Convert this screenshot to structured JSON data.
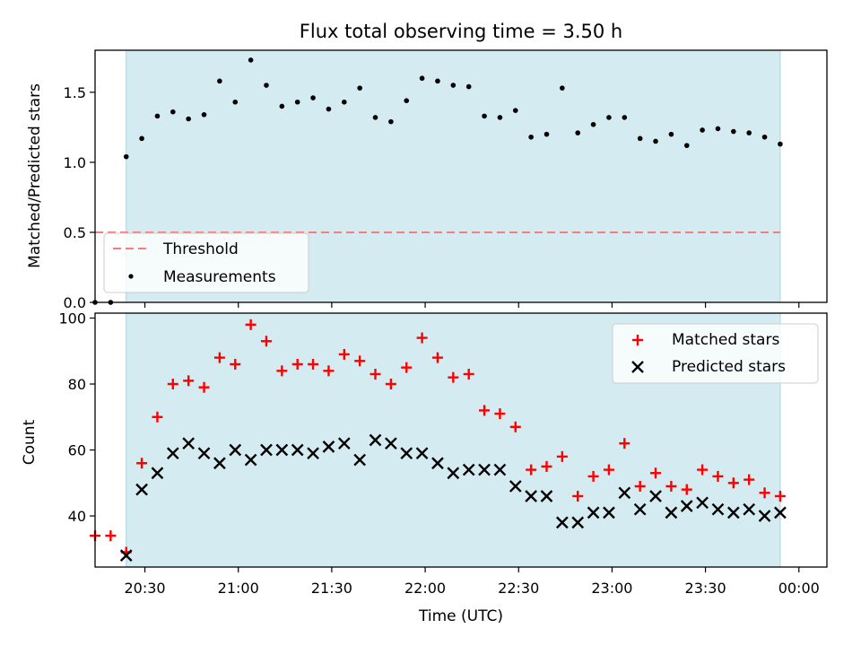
{
  "chart_data": [
    {
      "type": "scatter",
      "title": "Flux total observing time = 3.50 h",
      "ylabel": "Matched/Predicted stars",
      "xlabel": "",
      "xlim": [
        "20:14",
        "00:09"
      ],
      "ylim": [
        0,
        1.8
      ],
      "yticks": [
        {
          "value": 0.0,
          "label": "0.0"
        },
        {
          "value": 0.5,
          "label": "0.5"
        },
        {
          "value": 1.0,
          "label": "1.0"
        },
        {
          "value": 1.5,
          "label": "1.5"
        }
      ],
      "shaded_span": {
        "start": "20:24",
        "end": "23:54",
        "color": "#d3ebf1"
      },
      "threshold": {
        "name": "Threshold",
        "value": 0.5,
        "start": "20:14",
        "end": "23:54",
        "color": "#f08080"
      },
      "legend": {
        "placement": "lower-left",
        "entries": [
          "Threshold",
          "Measurements"
        ]
      },
      "series": [
        {
          "name": "Measurements",
          "color": "#000000",
          "marker": "dot",
          "x": [
            "20:14",
            "20:19",
            "20:24",
            "20:29",
            "20:34",
            "20:39",
            "20:44",
            "20:49",
            "20:54",
            "20:59",
            "21:04",
            "21:09",
            "21:14",
            "21:19",
            "21:24",
            "21:29",
            "21:34",
            "21:39",
            "21:44",
            "21:49",
            "21:54",
            "21:59",
            "22:04",
            "22:09",
            "22:14",
            "22:19",
            "22:24",
            "22:29",
            "22:34",
            "22:39",
            "22:44",
            "22:49",
            "22:54",
            "22:59",
            "23:04",
            "23:09",
            "23:14",
            "23:19",
            "23:24",
            "23:29",
            "23:34",
            "23:39",
            "23:44",
            "23:49",
            "23:54"
          ],
          "y": [
            0.0,
            0.0,
            1.04,
            1.17,
            1.33,
            1.36,
            1.31,
            1.34,
            1.58,
            1.43,
            1.73,
            1.55,
            1.4,
            1.43,
            1.46,
            1.38,
            1.43,
            1.53,
            1.32,
            1.29,
            1.44,
            1.6,
            1.58,
            1.55,
            1.54,
            1.33,
            1.32,
            1.37,
            1.18,
            1.2,
            1.53,
            1.21,
            1.27,
            1.32,
            1.32,
            1.17,
            1.15,
            1.2,
            1.12,
            1.23,
            1.24,
            1.22,
            1.21,
            1.18,
            1.13
          ]
        }
      ]
    },
    {
      "type": "scatter",
      "title": "",
      "ylabel": "Count",
      "xlabel": "Time (UTC)",
      "xlim": [
        "20:14",
        "00:09"
      ],
      "ylim": [
        24.5,
        101.5
      ],
      "yticks": [
        {
          "value": 40,
          "label": "40"
        },
        {
          "value": 60,
          "label": "60"
        },
        {
          "value": 80,
          "label": "80"
        },
        {
          "value": 100,
          "label": "100"
        }
      ],
      "xticks": [
        {
          "value": "20:30",
          "label": "20:30"
        },
        {
          "value": "21:00",
          "label": "21:00"
        },
        {
          "value": "21:30",
          "label": "21:30"
        },
        {
          "value": "22:00",
          "label": "22:00"
        },
        {
          "value": "22:30",
          "label": "22:30"
        },
        {
          "value": "23:00",
          "label": "23:00"
        },
        {
          "value": "23:30",
          "label": "23:30"
        },
        {
          "value": "00:00",
          "label": "00:00"
        }
      ],
      "shaded_span": {
        "start": "20:24",
        "end": "23:54",
        "color": "#d3ebf1"
      },
      "legend": {
        "placement": "top-right",
        "entries": [
          "Matched stars",
          "Predicted stars"
        ]
      },
      "series": [
        {
          "name": "Matched stars",
          "color": "#ff0000",
          "marker": "plus",
          "x": [
            "20:14",
            "20:19",
            "20:24",
            "20:29",
            "20:34",
            "20:39",
            "20:44",
            "20:49",
            "20:54",
            "20:59",
            "21:04",
            "21:09",
            "21:14",
            "21:19",
            "21:24",
            "21:29",
            "21:34",
            "21:39",
            "21:44",
            "21:49",
            "21:54",
            "21:59",
            "22:04",
            "22:09",
            "22:14",
            "22:19",
            "22:24",
            "22:29",
            "22:34",
            "22:39",
            "22:44",
            "22:49",
            "22:54",
            "22:59",
            "23:04",
            "23:09",
            "23:14",
            "23:19",
            "23:24",
            "23:29",
            "23:34",
            "23:39",
            "23:44",
            "23:49",
            "23:54"
          ],
          "y": [
            34,
            34,
            29,
            56,
            70,
            80,
            81,
            79,
            88,
            86,
            98,
            93,
            84,
            86,
            86,
            84,
            89,
            87,
            83,
            80,
            85,
            94,
            88,
            82,
            83,
            72,
            71,
            67,
            54,
            55,
            58,
            46,
            52,
            54,
            62,
            49,
            53,
            49,
            48,
            54,
            52,
            50,
            51,
            47,
            46
          ]
        },
        {
          "name": "Predicted stars",
          "color": "#000000",
          "marker": "x",
          "x": [
            "20:24",
            "20:29",
            "20:34",
            "20:39",
            "20:44",
            "20:49",
            "20:54",
            "20:59",
            "21:04",
            "21:09",
            "21:14",
            "21:19",
            "21:24",
            "21:29",
            "21:34",
            "21:39",
            "21:44",
            "21:49",
            "21:54",
            "21:59",
            "22:04",
            "22:09",
            "22:14",
            "22:19",
            "22:24",
            "22:29",
            "22:34",
            "22:39",
            "22:44",
            "22:49",
            "22:54",
            "22:59",
            "23:04",
            "23:09",
            "23:14",
            "23:19",
            "23:24",
            "23:29",
            "23:34",
            "23:39",
            "23:44",
            "23:49",
            "23:54"
          ],
          "y": [
            28,
            48,
            53,
            59,
            62,
            59,
            56,
            60,
            57,
            60,
            60,
            60,
            59,
            61,
            62,
            57,
            63,
            62,
            59,
            59,
            56,
            53,
            54,
            54,
            54,
            49,
            46,
            46,
            38,
            38,
            41,
            41,
            47,
            42,
            46,
            41,
            43,
            44,
            42,
            41,
            42,
            40,
            41
          ]
        }
      ]
    }
  ]
}
